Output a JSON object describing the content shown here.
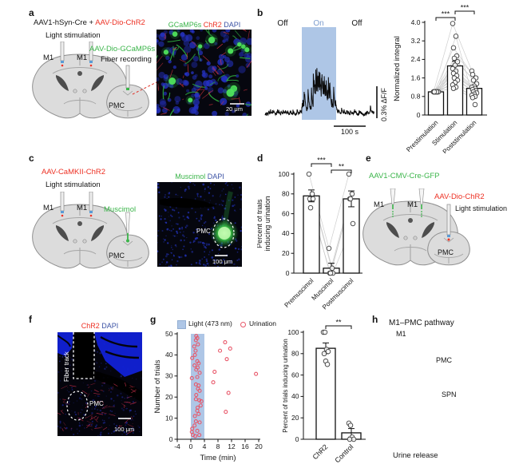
{
  "colors": {
    "red": "#ed3124",
    "green": "#3bb54a",
    "blue": "#3c53a5",
    "light_blue": "#aec6e6",
    "on_label": "#7b9cce",
    "point_red": "#e8586a"
  },
  "panels": {
    "a": {
      "label": "a",
      "virus_black": "AAV1-hSyn-Cre + ",
      "virus_red": "AAV-Dio-ChR2",
      "light_stim": "Light stimulation",
      "m1_left": "M1",
      "m1_right": "M1",
      "gcamp_virus": "AAV-Dio-GCaMP6s",
      "fiber_recording": "Fiber recording",
      "pmc": "PMC",
      "img_green": "GCaMP6s",
      "img_red": "ChR2",
      "img_blue": "DAPI",
      "scale": "20 μm"
    },
    "b": {
      "label": "b",
      "off1": "Off",
      "on": "On",
      "off2": "Off",
      "vscale": "0.3% ΔF/F",
      "hscale": "100 s"
    },
    "c": {
      "label": "c",
      "virus": "AAV-CaMKII-ChR2",
      "light_stim": "Light stimulation",
      "m1_left": "M1",
      "m1_right": "M1",
      "muscimol": "Muscimol",
      "pmc": "PMC",
      "img_green": "Muscimol",
      "img_blue": "DAPI",
      "img_pmc": "PMC",
      "scale": "100 μm"
    },
    "d": {
      "label": "d"
    },
    "e": {
      "label": "e",
      "virus_green": "AAV1-CMV-Cre-GFP",
      "virus_red": "AAV-Dio-ChR2",
      "light_stim": "Light stimulation",
      "m1_left": "M1",
      "m1_right": "M1",
      "pmc": "PMC"
    },
    "f": {
      "label": "f",
      "img_red": "ChR2",
      "img_blue": "DAPI",
      "fiber_track": "Fiber track",
      "pmc": "PMC",
      "scale": "100 μm"
    },
    "g": {
      "label": "g",
      "legend_light": "Light (473 nm)",
      "legend_urination": "Urination"
    },
    "h": {
      "label": "h",
      "title": "M1–PMC pathway",
      "m1": "M1",
      "pmc": "PMC",
      "spn": "SPN",
      "urine": "Urine release"
    }
  },
  "chart_data": [
    {
      "id": "b_trace",
      "type": "line",
      "description": "Fiber photometry calcium trace (PMC) during M1 optogenetic stimulation; signal increases during light-on window",
      "regions": [
        "Off",
        "On",
        "Off"
      ],
      "scale_bar_x": "100 s",
      "scale_bar_y": "0.3% ΔF/F"
    },
    {
      "id": "b_bars",
      "type": "bar",
      "ylabel": [
        "Normalized integral"
      ],
      "categories": [
        "Prestimulation",
        "Stimulation",
        "Poststimulation"
      ],
      "values": [
        1.0,
        2.12,
        1.15
      ],
      "errors": [
        0.02,
        0.2,
        0.08
      ],
      "ylim": [
        0,
        4
      ],
      "yticks": [
        0,
        0.8,
        1.6,
        2.4,
        3.2,
        4
      ],
      "ytick_labels": [
        "0",
        "0.8",
        "1.6",
        "2.4",
        "3.2",
        "4.0"
      ],
      "paired_points": [
        [
          1,
          3.95,
          1.9
        ],
        [
          1,
          3.4,
          0.45
        ],
        [
          1,
          2.9,
          1.75
        ],
        [
          1,
          2.55,
          1.6
        ],
        [
          1,
          2.45,
          1.5
        ],
        [
          1,
          2.3,
          1.35
        ],
        [
          1,
          2.15,
          1.25
        ],
        [
          1,
          2.0,
          1.2
        ],
        [
          1,
          1.9,
          1.15
        ],
        [
          1,
          1.8,
          1.1
        ],
        [
          1,
          1.7,
          1.05
        ],
        [
          1,
          1.6,
          1.0
        ],
        [
          1,
          1.5,
          0.95
        ],
        [
          1,
          1.4,
          0.9
        ],
        [
          1,
          1.3,
          0.85
        ],
        [
          1,
          1.2,
          0.8
        ],
        [
          1,
          1.15,
          0.75
        ]
      ],
      "sig": [
        {
          "from": 0,
          "to": 1,
          "label": "***"
        },
        {
          "from": 1,
          "to": 2,
          "label": "***"
        }
      ]
    },
    {
      "id": "d_bars",
      "type": "bar",
      "ylabel": [
        "Percent of trials",
        "inducing urination"
      ],
      "categories": [
        "Premuscimol",
        "Muscimol",
        "Postmuscimol"
      ],
      "values": [
        78,
        5,
        75
      ],
      "errors": [
        6,
        5,
        8
      ],
      "ylim": [
        0,
        100
      ],
      "yticks": [
        0,
        20,
        40,
        60,
        80,
        100
      ],
      "paired_points": [
        [
          100,
          25,
          100
        ],
        [
          80,
          5,
          80
        ],
        [
          75,
          0,
          75
        ],
        [
          75,
          0,
          50
        ],
        [
          66,
          0,
          75
        ]
      ],
      "sig": [
        {
          "from": 0,
          "to": 1,
          "label": "***"
        },
        {
          "from": 1,
          "to": 2,
          "label": "**"
        }
      ]
    },
    {
      "id": "g_scatter",
      "type": "scatter",
      "xlabel": "Time (min)",
      "ylabel": [
        "Number of trials"
      ],
      "xlim": [
        -4,
        20
      ],
      "ylim": [
        0,
        50
      ],
      "xticks": [
        -4,
        0,
        4,
        8,
        12,
        16,
        20
      ],
      "yticks": [
        0,
        10,
        20,
        30,
        40,
        50
      ],
      "light_window_min": [
        0,
        4
      ],
      "legend": [
        "Light (473 nm)",
        "Urination"
      ],
      "points": [
        [
          0.4,
          38.5
        ],
        [
          0.3,
          29
        ],
        [
          0.4,
          5
        ],
        [
          0.3,
          3.5
        ],
        [
          0.6,
          2
        ],
        [
          1.0,
          44
        ],
        [
          1.6,
          49
        ],
        [
          1.9,
          48
        ],
        [
          1.5,
          47
        ],
        [
          2.1,
          45
        ],
        [
          1.4,
          42
        ],
        [
          1.2,
          40
        ],
        [
          1.9,
          37
        ],
        [
          2.3,
          36
        ],
        [
          1.1,
          35
        ],
        [
          2.0,
          34
        ],
        [
          1.6,
          33
        ],
        [
          2.6,
          31.5
        ],
        [
          1.9,
          29.5
        ],
        [
          1.5,
          26
        ],
        [
          2.3,
          25.5
        ],
        [
          2.1,
          24
        ],
        [
          2.6,
          23
        ],
        [
          1.6,
          21
        ],
        [
          1.5,
          19
        ],
        [
          2.5,
          18.5
        ],
        [
          3.1,
          18
        ],
        [
          2.9,
          16
        ],
        [
          2.0,
          15
        ],
        [
          1.9,
          13.5
        ],
        [
          2.3,
          12
        ],
        [
          1.2,
          11
        ],
        [
          1.5,
          8.5
        ],
        [
          2.6,
          8
        ],
        [
          1.1,
          6.5
        ],
        [
          1.9,
          4
        ],
        [
          2.5,
          2
        ],
        [
          1.3,
          1.5
        ],
        [
          7.0,
          32
        ],
        [
          6.6,
          27
        ],
        [
          8.6,
          42
        ],
        [
          10.1,
          46
        ],
        [
          11.6,
          43
        ],
        [
          10.6,
          38
        ],
        [
          11.1,
          22
        ],
        [
          10.3,
          13
        ],
        [
          19.2,
          31
        ]
      ]
    },
    {
      "id": "g_bars",
      "type": "bar",
      "ylabel": [
        "Percent of trials inducing urination"
      ],
      "categories": [
        "ChR2",
        "Control"
      ],
      "values": [
        85,
        6
      ],
      "errors": [
        5,
        4
      ],
      "ylim": [
        0,
        100
      ],
      "yticks": [
        0,
        20,
        40,
        60,
        80,
        100
      ],
      "points": [
        [
          100,
          100,
          84,
          82,
          80,
          73,
          70
        ],
        [
          15,
          13,
          2,
          0,
          0
        ]
      ],
      "sig": [
        {
          "from": 0,
          "to": 1,
          "label": "**"
        }
      ]
    }
  ]
}
